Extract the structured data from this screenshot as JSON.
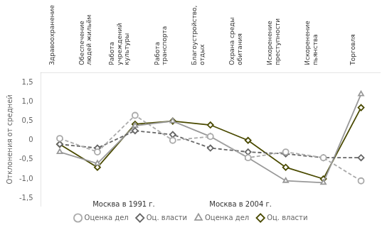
{
  "chart_data": {
    "type": "line",
    "categories": [
      "Здравоохранение",
      "Обеспечение\nлюдей жильём",
      "Работа\nучреждений\nкультуры",
      "Работа\nтранспорта",
      "Благоустройство,\nотдых",
      "Охрана среды\nобитания",
      "Искоренение\nпреступности",
      "Искоренение\nпьянства",
      "Торговля"
    ],
    "series": [
      {
        "name": "Оценка дел",
        "color": "#aaaaaa",
        "line_style": "dashed",
        "marker": "circle",
        "values": [
          0.05,
          -0.3,
          0.65,
          0.0,
          0.1,
          -0.45,
          -0.3,
          -0.45,
          -1.05
        ]
      },
      {
        "name": "Оц. власти",
        "color": "#666666",
        "line_style": "dashed",
        "marker": "diamond",
        "values": [
          -0.1,
          -0.2,
          0.25,
          0.15,
          -0.2,
          -0.3,
          -0.35,
          -0.45,
          -0.45
        ]
      },
      {
        "name": "Оценка дел",
        "color": "#999999",
        "line_style": "solid",
        "marker": "triangle",
        "values": [
          -0.3,
          -0.6,
          0.38,
          0.5,
          0.1,
          -0.45,
          -1.05,
          -1.1,
          1.2
        ]
      },
      {
        "name": "Оц. власти",
        "color": "#4a4a00",
        "line_style": "solid",
        "marker": "diamond",
        "values": [
          -0.1,
          -0.7,
          0.42,
          0.5,
          0.4,
          0.0,
          -0.7,
          -1.0,
          0.85
        ]
      }
    ],
    "y_label": "Отклонения от средней",
    "ylim": [
      -1.7,
      1.75
    ],
    "yticks": [
      {
        "value": -1.5,
        "label": "-1,5"
      },
      {
        "value": -1.0,
        "label": "-1,0"
      },
      {
        "value": -0.5,
        "label": "-0,5"
      },
      0,
      {
        "value": 0.5,
        "label": "0,5"
      },
      {
        "value": 1.0,
        "label": "1,0"
      },
      {
        "value": 1.5,
        "label": "1,5"
      }
    ],
    "annotations": [
      {
        "text": "Москва в 1991 г.",
        "x": 1.7,
        "y": -1.58
      },
      {
        "text": "Москва в 2004 г.",
        "x": 4.8,
        "y": -1.58
      }
    ],
    "grid": false,
    "legend": "bottom"
  }
}
